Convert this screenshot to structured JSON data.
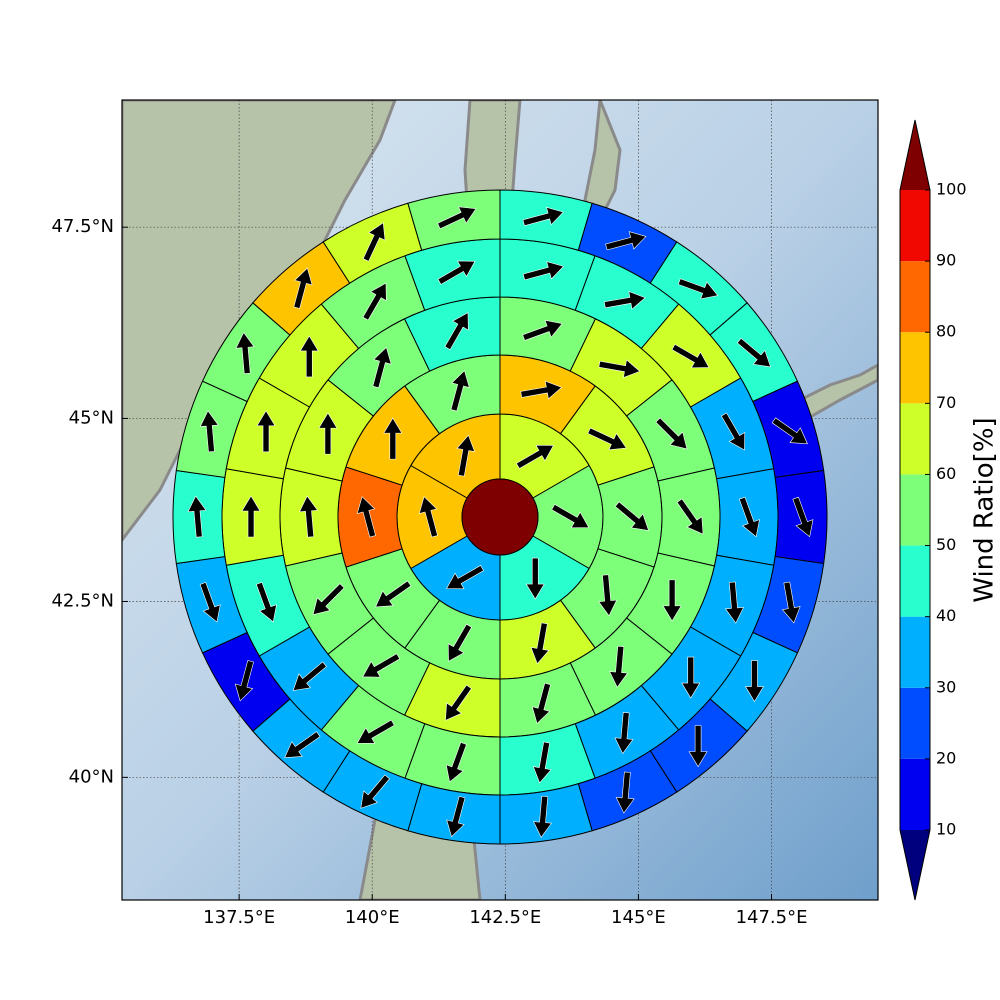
{
  "chart_data": {
    "type": "polar_sectors",
    "projection": "mercator",
    "grid": true,
    "xlim": [
      135.3,
      149.5
    ],
    "ylim": [
      38.2,
      49.1
    ],
    "xticks": [
      {
        "value": 137.5,
        "label": "137.5°E"
      },
      {
        "value": 140,
        "label": "140°E"
      },
      {
        "value": 142.5,
        "label": "142.5°E"
      },
      {
        "value": 145,
        "label": "145°E"
      },
      {
        "value": 147.5,
        "label": "147.5°E"
      }
    ],
    "yticks": [
      {
        "value": 40,
        "label": "40°N"
      },
      {
        "value": 42.5,
        "label": "42.5°N"
      },
      {
        "value": 45,
        "label": "45°N"
      },
      {
        "value": 47.5,
        "label": "47.5°N"
      }
    ],
    "colorbar_label": "Wind Ratio[%]",
    "levels": [
      10,
      20,
      30,
      40,
      50,
      60,
      70,
      80,
      90,
      100
    ],
    "colors": [
      "#00007f",
      "#0000f1",
      "#004cff",
      "#00b0ff",
      "#29ffce",
      "#7dff7a",
      "#ceff29",
      "#ffc400",
      "#ff6800",
      "#f10800",
      "#7f0000"
    ],
    "rings": [
      {
        "values": [
          65,
          55,
          45,
          35,
          75,
          75
        ],
        "directions": [
          60,
          120,
          180,
          240,
          345,
          10
        ]
      },
      {
        "values": [
          75,
          65,
          55,
          55,
          65,
          55,
          55,
          85,
          75,
          55
        ],
        "directions": [
          80,
          115,
          130,
          175,
          190,
          210,
          235,
          345,
          0,
          15
        ]
      },
      {
        "values": [
          55,
          65,
          55,
          55,
          55,
          55,
          55,
          65,
          55,
          55,
          65,
          65,
          55,
          45
        ],
        "directions": [
          70,
          100,
          135,
          145,
          180,
          185,
          195,
          215,
          240,
          225,
          355,
          0,
          15,
          30
        ]
      },
      {
        "values": [
          45,
          45,
          65,
          35,
          35,
          35,
          35,
          35,
          45,
          55,
          55,
          35,
          45,
          65,
          65,
          65,
          55,
          45
        ],
        "directions": [
          75,
          80,
          120,
          150,
          160,
          175,
          180,
          185,
          190,
          200,
          240,
          230,
          160,
          0,
          0,
          0,
          30,
          60
        ]
      },
      {
        "values": [
          45,
          25,
          45,
          45,
          15,
          15,
          25,
          35,
          25,
          25,
          35,
          35,
          35,
          35,
          15,
          35,
          45,
          55,
          55,
          75,
          65,
          55
        ],
        "directions": [
          75,
          75,
          110,
          130,
          125,
          160,
          170,
          180,
          180,
          185,
          185,
          195,
          220,
          235,
          195,
          160,
          355,
          355,
          355,
          15,
          25,
          65
        ]
      }
    ]
  }
}
